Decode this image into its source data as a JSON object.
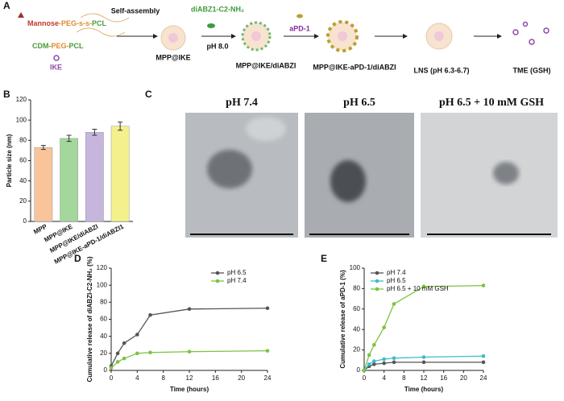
{
  "panel_labels": [
    "A",
    "B",
    "C",
    "D",
    "E"
  ],
  "panel_a": {
    "polymer_1": [
      {
        "text": "Mannose",
        "color": "#c0392b"
      },
      {
        "text": "-PEG-s-s-",
        "color": "#e08a2b"
      },
      {
        "text": "PCL",
        "color": "#4a9a3a"
      }
    ],
    "polymer_2": [
      {
        "text": "CDM-",
        "color": "#4a9a3a"
      },
      {
        "text": "PEG-",
        "color": "#e08a2b"
      },
      {
        "text": "PCL",
        "color": "#4a9a3a"
      }
    ],
    "drug": "IKE",
    "step_1": "Self-assembly",
    "agonist": "diABZ1-C2-NH₂",
    "step_2": "pH 8.0",
    "antibody": "aPD-1",
    "np_1": "MPP@IKE",
    "np_2": "MPP@IKE/diABZI",
    "np_3": "MPP@IKE-aPD-1/diABZI",
    "np_4": "LNS (pH 6.3-6.7)",
    "np_5": "TME (GSH)"
  },
  "panel_c": {
    "labels": [
      "pH 7.4",
      "pH 6.5",
      "pH 6.5 + 10 mM GSH"
    ]
  },
  "chart_data": [
    {
      "type": "bar",
      "ylabel": "Particle size (nm)",
      "categories": [
        "MPP",
        "MPP@IKE",
        "MPP@IKE/diABZI",
        "MPP@IKE-aPD-1/diABZI1"
      ],
      "values": [
        73,
        82,
        88,
        94
      ],
      "errors": [
        2,
        3,
        3,
        4
      ],
      "colors": [
        "#f9c49a",
        "#a3d79c",
        "#c6b6de",
        "#f4f08c"
      ],
      "ylim": [
        0,
        120
      ],
      "yticks": [
        0,
        20,
        40,
        60,
        80,
        100,
        120
      ]
    },
    {
      "type": "line",
      "xlabel": "Time (hours)",
      "ylabel": "Cumulative release of diABZI-C2-NH₂ (%)",
      "x": [
        0,
        1,
        2,
        4,
        6,
        12,
        24
      ],
      "series": [
        {
          "name": "pH 6.5",
          "color": "#555555",
          "values": [
            5,
            20,
            32,
            42,
            65,
            72,
            73
          ]
        },
        {
          "name": "pH 7.4",
          "color": "#7cc242",
          "values": [
            3,
            10,
            14,
            20,
            21,
            22,
            23
          ]
        }
      ],
      "xlim": [
        0,
        24
      ],
      "xticks": [
        0,
        4,
        8,
        12,
        16,
        20,
        24
      ],
      "ylim": [
        0,
        120
      ],
      "yticks": [
        0,
        20,
        40,
        60,
        80,
        100,
        120
      ],
      "legend": "upper right"
    },
    {
      "type": "line",
      "xlabel": "Time (hours)",
      "ylabel": "Cumulative release of aPD-1 (%)",
      "x": [
        0,
        1,
        2,
        4,
        6,
        12,
        24
      ],
      "series": [
        {
          "name": "pH 7.4",
          "color": "#555555",
          "values": [
            0,
            4,
            6,
            7,
            8,
            8,
            8
          ]
        },
        {
          "name": "pH 6.5",
          "color": "#3cbcc8",
          "values": [
            0,
            6,
            9,
            11,
            12,
            13,
            14
          ]
        },
        {
          "name": "pH 6.5 + 10 mM GSH",
          "color": "#7cc242",
          "values": [
            0,
            15,
            25,
            42,
            65,
            82,
            83
          ]
        }
      ],
      "xlim": [
        0,
        24
      ],
      "xticks": [
        0,
        4,
        8,
        12,
        16,
        20,
        24
      ],
      "ylim": [
        0,
        100
      ],
      "yticks": [
        0,
        20,
        40,
        60,
        80,
        100
      ],
      "legend": "upper left"
    }
  ]
}
